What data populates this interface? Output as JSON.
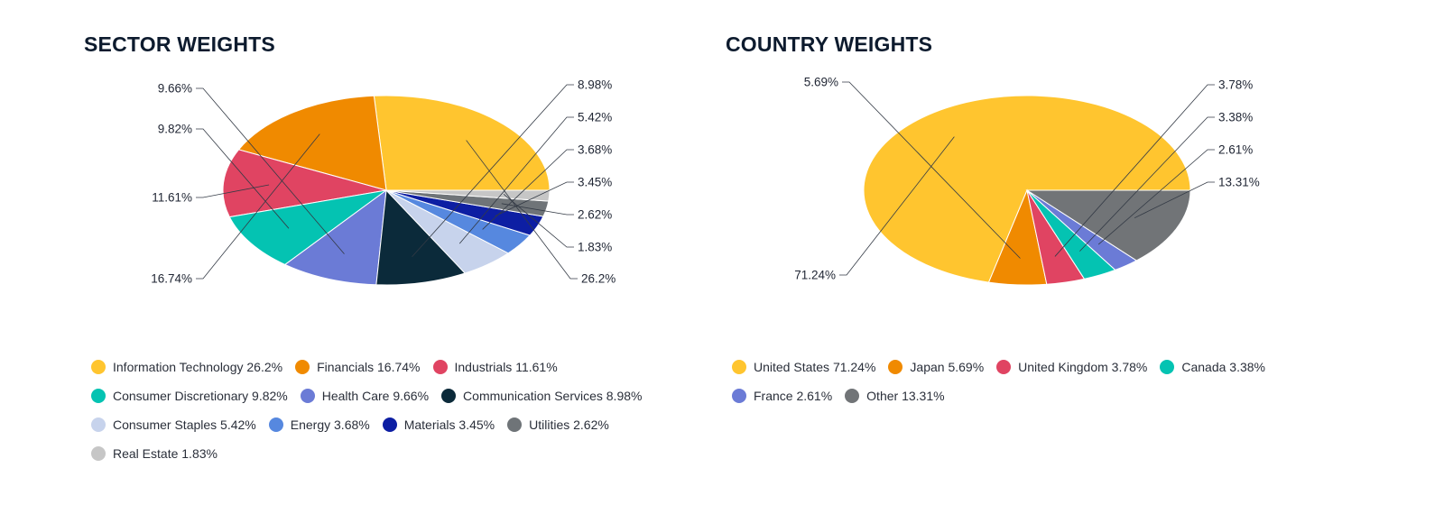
{
  "chart_data": [
    {
      "type": "pie",
      "title": "SECTOR WEIGHTS",
      "slices": [
        {
          "label": "Information Technology",
          "value": 26.2,
          "display": "26.2%",
          "color": "#FFC52F"
        },
        {
          "label": "Financials",
          "value": 16.74,
          "display": "16.74%",
          "color": "#F08A00"
        },
        {
          "label": "Industrials",
          "value": 11.61,
          "display": "11.61%",
          "color": "#E04462"
        },
        {
          "label": "Consumer Discretionary",
          "value": 9.82,
          "display": "9.82%",
          "color": "#04C3B2"
        },
        {
          "label": "Health Care",
          "value": 9.66,
          "display": "9.66%",
          "color": "#6B7BD6"
        },
        {
          "label": "Communication Services",
          "value": 8.98,
          "display": "8.98%",
          "color": "#0B2A3A"
        },
        {
          "label": "Consumer Staples",
          "value": 5.42,
          "display": "5.42%",
          "color": "#C7D3EC"
        },
        {
          "label": "Energy",
          "value": 3.68,
          "display": "3.68%",
          "color": "#5688DF"
        },
        {
          "label": "Materials",
          "value": 3.45,
          "display": "3.45%",
          "color": "#0D1EA3"
        },
        {
          "label": "Utilities",
          "value": 2.62,
          "display": "2.62%",
          "color": "#6F7478"
        },
        {
          "label": "Real Estate",
          "value": 1.83,
          "display": "1.83%",
          "color": "#C6C6C6"
        }
      ],
      "legend_position": "bottom"
    },
    {
      "type": "pie",
      "title": "COUNTRY WEIGHTS",
      "slices": [
        {
          "label": "United States",
          "value": 71.24,
          "display": "71.24%",
          "color": "#FFC52F"
        },
        {
          "label": "Japan",
          "value": 5.69,
          "display": "5.69%",
          "color": "#F08A00"
        },
        {
          "label": "United Kingdom",
          "value": 3.78,
          "display": "3.78%",
          "color": "#E04462"
        },
        {
          "label": "Canada",
          "value": 3.38,
          "display": "3.38%",
          "color": "#04C3B2"
        },
        {
          "label": "France",
          "value": 2.61,
          "display": "2.61%",
          "color": "#6B7BD6"
        },
        {
          "label": "Other",
          "value": 13.31,
          "display": "13.31%",
          "color": "#717477"
        }
      ],
      "legend_position": "bottom"
    }
  ]
}
